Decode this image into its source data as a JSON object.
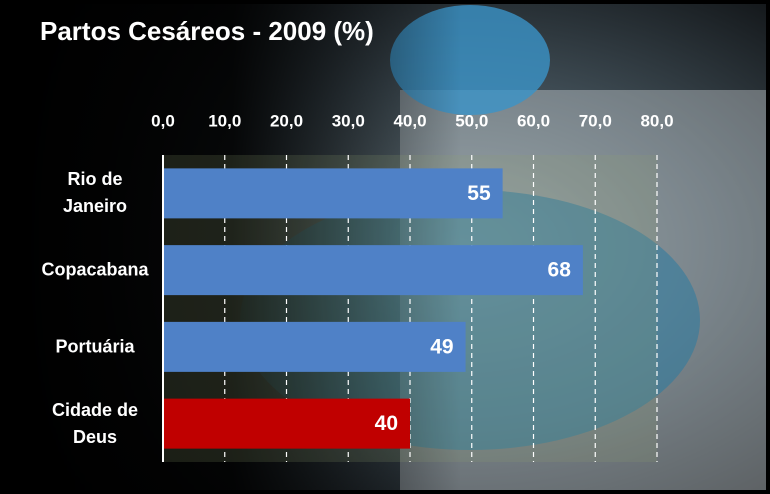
{
  "chart_data": {
    "type": "bar",
    "orientation": "horizontal",
    "title": "Partos Cesáreos - 2009 (%)",
    "categories": [
      "Rio de Janeiro",
      "Copacabana",
      "Portuária",
      "Cidade de Deus"
    ],
    "values": [
      55,
      68,
      49,
      40
    ],
    "colors": [
      "#4f81c7",
      "#4f81c7",
      "#4f81c7",
      "#c00000"
    ],
    "xlim": [
      0,
      80
    ],
    "xticks": [
      {
        "value": 0,
        "label": "0,0"
      },
      {
        "value": 10,
        "label": "10,0"
      },
      {
        "value": 20,
        "label": "20,0"
      },
      {
        "value": 30,
        "label": "30,0"
      },
      {
        "value": 40,
        "label": "40,0"
      },
      {
        "value": 50,
        "label": "50,0"
      },
      {
        "value": 60,
        "label": "60,0"
      },
      {
        "value": 70,
        "label": "70,0"
      },
      {
        "value": 80,
        "label": "80,0"
      }
    ],
    "grid": true
  }
}
